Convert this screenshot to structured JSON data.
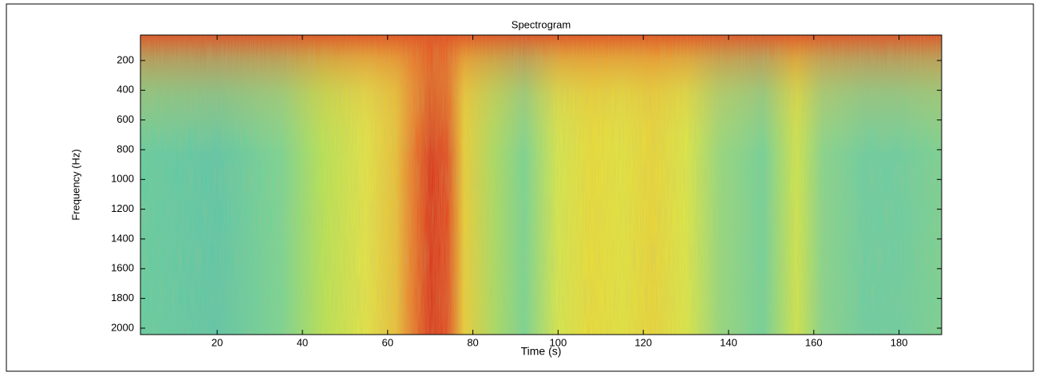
{
  "chart_data": {
    "type": "spectrogram",
    "title": "Spectrogram",
    "x_label": "Time (s)",
    "y_label": "Frequency (Hz)",
    "xlim": [
      2,
      190
    ],
    "xticks": [
      20,
      40,
      60,
      80,
      100,
      120,
      140,
      160,
      180
    ],
    "ylim": [
      29,
      2043
    ],
    "y_inverted": true,
    "yticks": [
      200,
      400,
      600,
      800,
      1000,
      1200,
      1400,
      1600,
      1800,
      2000
    ]
  }
}
